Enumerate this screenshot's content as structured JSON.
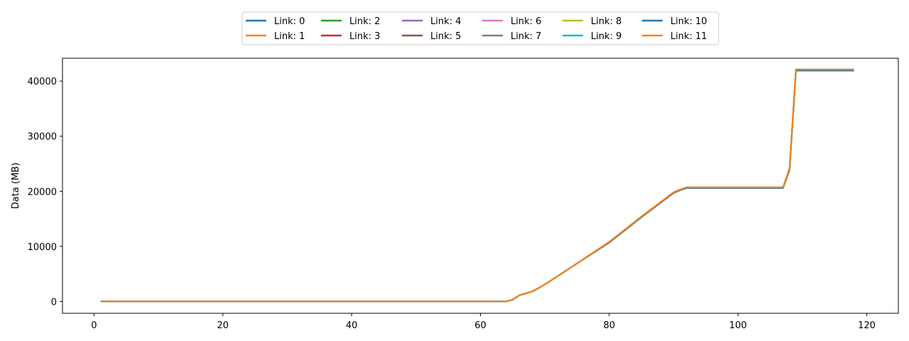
{
  "chart_data": {
    "type": "line",
    "title": "",
    "xlabel": "",
    "ylabel": "Data (MB)",
    "xlim": [
      -4.9,
      124.9
    ],
    "ylim": [
      -2150,
      44150
    ],
    "xticks": [
      0,
      20,
      40,
      60,
      80,
      100,
      120
    ],
    "yticks": [
      0,
      10000,
      20000,
      30000,
      40000
    ],
    "grid": false,
    "legend": {
      "placement": "top-center",
      "columns": 6
    },
    "x": [
      1,
      64,
      65,
      66,
      68,
      69,
      70,
      72,
      75,
      80,
      85,
      90,
      91,
      92,
      107,
      108,
      109,
      118
    ],
    "series": [
      {
        "name": "Link: 0",
        "color": "#1f77b4",
        "values": [
          0,
          0,
          300,
          1100,
          1800,
          2400,
          3100,
          4600,
          6900,
          10700,
          15300,
          19700,
          20200,
          20600,
          20600,
          23900,
          41900,
          41900
        ]
      },
      {
        "name": "Link: 1",
        "color": "#ff7f0e",
        "values": [
          0,
          0,
          300,
          1100,
          1800,
          2400,
          3100,
          4600,
          6900,
          10800,
          15400,
          19800,
          20300,
          20700,
          20700,
          24100,
          42100,
          42100
        ]
      },
      {
        "name": "Link: 2",
        "color": "#2ca02c",
        "values": [
          0,
          0,
          300,
          1100,
          1800,
          2400,
          3100,
          4600,
          6900,
          10700,
          15300,
          19700,
          20200,
          20600,
          20600,
          23900,
          41900,
          41900
        ]
      },
      {
        "name": "Link: 3",
        "color": "#d62728",
        "values": [
          0,
          0,
          300,
          1100,
          1800,
          2400,
          3100,
          4600,
          6900,
          10800,
          15400,
          19800,
          20300,
          20700,
          20700,
          24100,
          42100,
          42100
        ]
      },
      {
        "name": "Link: 4",
        "color": "#9467bd",
        "values": [
          0,
          0,
          300,
          1100,
          1800,
          2400,
          3100,
          4600,
          6900,
          10700,
          15300,
          19700,
          20200,
          20600,
          20600,
          23900,
          41900,
          41900
        ]
      },
      {
        "name": "Link: 5",
        "color": "#8c564b",
        "values": [
          0,
          0,
          300,
          1100,
          1800,
          2400,
          3100,
          4600,
          6900,
          10800,
          15400,
          19800,
          20300,
          20700,
          20700,
          24100,
          42100,
          42100
        ]
      },
      {
        "name": "Link: 6",
        "color": "#e377c2",
        "values": [
          0,
          0,
          300,
          1100,
          1800,
          2400,
          3100,
          4600,
          6900,
          10700,
          15300,
          19700,
          20200,
          20600,
          20600,
          23900,
          41900,
          41900
        ]
      },
      {
        "name": "Link: 7",
        "color": "#7f7f7f",
        "values": [
          0,
          0,
          300,
          1100,
          1800,
          2400,
          3100,
          4600,
          6900,
          10800,
          15400,
          19800,
          20300,
          20700,
          20700,
          24100,
          42100,
          42100
        ]
      },
      {
        "name": "Link: 8",
        "color": "#bcbd22",
        "values": [
          0,
          0,
          300,
          1100,
          1800,
          2400,
          3100,
          4600,
          6900,
          10700,
          15300,
          19700,
          20200,
          20600,
          20600,
          23900,
          41900,
          41900
        ]
      },
      {
        "name": "Link: 9",
        "color": "#17becf",
        "values": [
          0,
          0,
          300,
          1100,
          1800,
          2400,
          3100,
          4600,
          6900,
          10800,
          15400,
          19800,
          20300,
          20700,
          20700,
          24100,
          42100,
          42100
        ]
      },
      {
        "name": "Link: 10",
        "color": "#1f77b4",
        "values": [
          0,
          0,
          300,
          1100,
          1800,
          2400,
          3100,
          4600,
          6900,
          10700,
          15300,
          19700,
          20200,
          20600,
          20600,
          23900,
          41900,
          41900
        ]
      },
      {
        "name": "Link: 11",
        "color": "#ff7f0e",
        "values": [
          0,
          0,
          300,
          1100,
          1800,
          2400,
          3100,
          4600,
          6900,
          10800,
          15400,
          19800,
          20300,
          20700,
          20700,
          24100,
          42100,
          42100
        ]
      }
    ]
  }
}
